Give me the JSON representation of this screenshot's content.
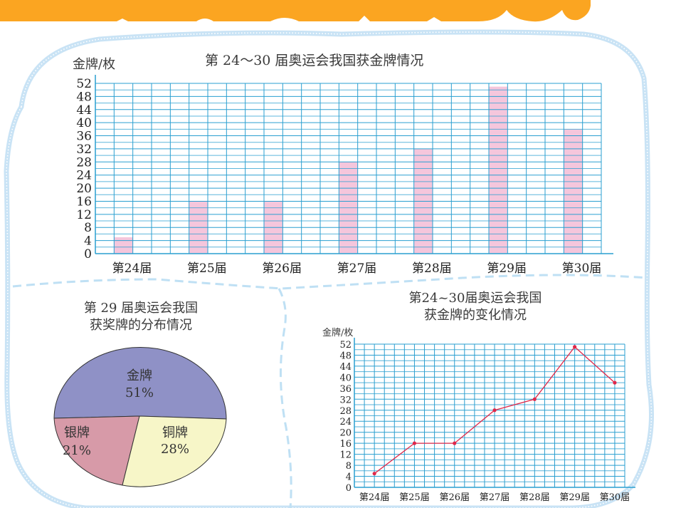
{
  "banner": {
    "color": "#fba521"
  },
  "frame": {
    "border_color": "#c9e3f5",
    "divider_color": "#bfe0f4"
  },
  "chart_data": [
    {
      "id": "bar",
      "type": "bar",
      "title": "第 24～30 届奥运会我国获金牌情况",
      "xlabel": "",
      "ylabel": "金牌/枚",
      "categories": [
        "第24届",
        "第25届",
        "第26届",
        "第27届",
        "第28届",
        "第29届",
        "第30届"
      ],
      "values": [
        5,
        16,
        16,
        28,
        32,
        51,
        38
      ],
      "ylim": [
        0,
        52
      ],
      "yticks": [
        0,
        4,
        8,
        12,
        16,
        20,
        24,
        28,
        32,
        36,
        40,
        44,
        48,
        52
      ],
      "grid": true,
      "bar_color": "#f5c6dc",
      "grid_color": "#2a9fd0"
    },
    {
      "id": "pie",
      "type": "pie",
      "title": "第 29 届奥运会我国获奖牌的分布情况",
      "title_lines": [
        "第 29 届奥运会我国",
        "获奖牌的分布情况"
      ],
      "slices": [
        {
          "label": "金牌",
          "value": 51,
          "pct": "51%",
          "color": "#8f91c6"
        },
        {
          "label": "银牌",
          "value": 21,
          "pct": "21%",
          "color": "#d79aa8"
        },
        {
          "label": "铜牌",
          "value": 28,
          "pct": "28%",
          "color": "#f7f6c8"
        }
      ]
    },
    {
      "id": "line",
      "type": "line",
      "title": "第24~30届奥运会我国获金牌的变化情况",
      "title_lines": [
        "第24~30届奥运会我国",
        "获金牌的变化情况"
      ],
      "xlabel": "",
      "ylabel": "金牌/枚",
      "categories": [
        "第24届",
        "第25届",
        "第26届",
        "第27届",
        "第28届",
        "第29届",
        "第30届"
      ],
      "values": [
        5,
        16,
        16,
        28,
        32,
        51,
        38
      ],
      "ylim": [
        0,
        52
      ],
      "yticks": [
        0,
        4,
        8,
        12,
        16,
        20,
        24,
        28,
        32,
        36,
        40,
        44,
        48,
        52
      ],
      "grid": true,
      "line_color": "#e0284a",
      "grid_color": "#2a9fd0"
    }
  ]
}
